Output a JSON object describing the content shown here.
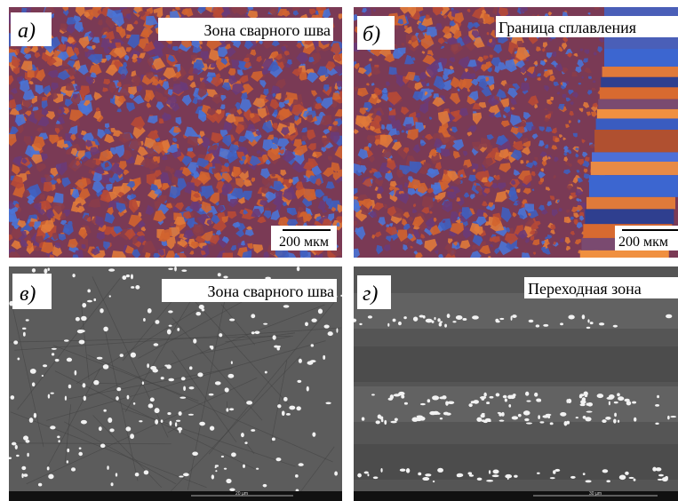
{
  "panels": [
    {
      "label": "а)",
      "caption": "Зона сварного шва",
      "scale_label": "200 мкм"
    },
    {
      "label": "б)",
      "caption": "Граница сплавления",
      "scale_label": "200 мкм"
    },
    {
      "label": "в)",
      "caption": "Зона сварного шва",
      "scale_label": "20 µm"
    },
    {
      "label": "г)",
      "caption": "Переходная зона",
      "scale_label": "30 µm"
    }
  ]
}
